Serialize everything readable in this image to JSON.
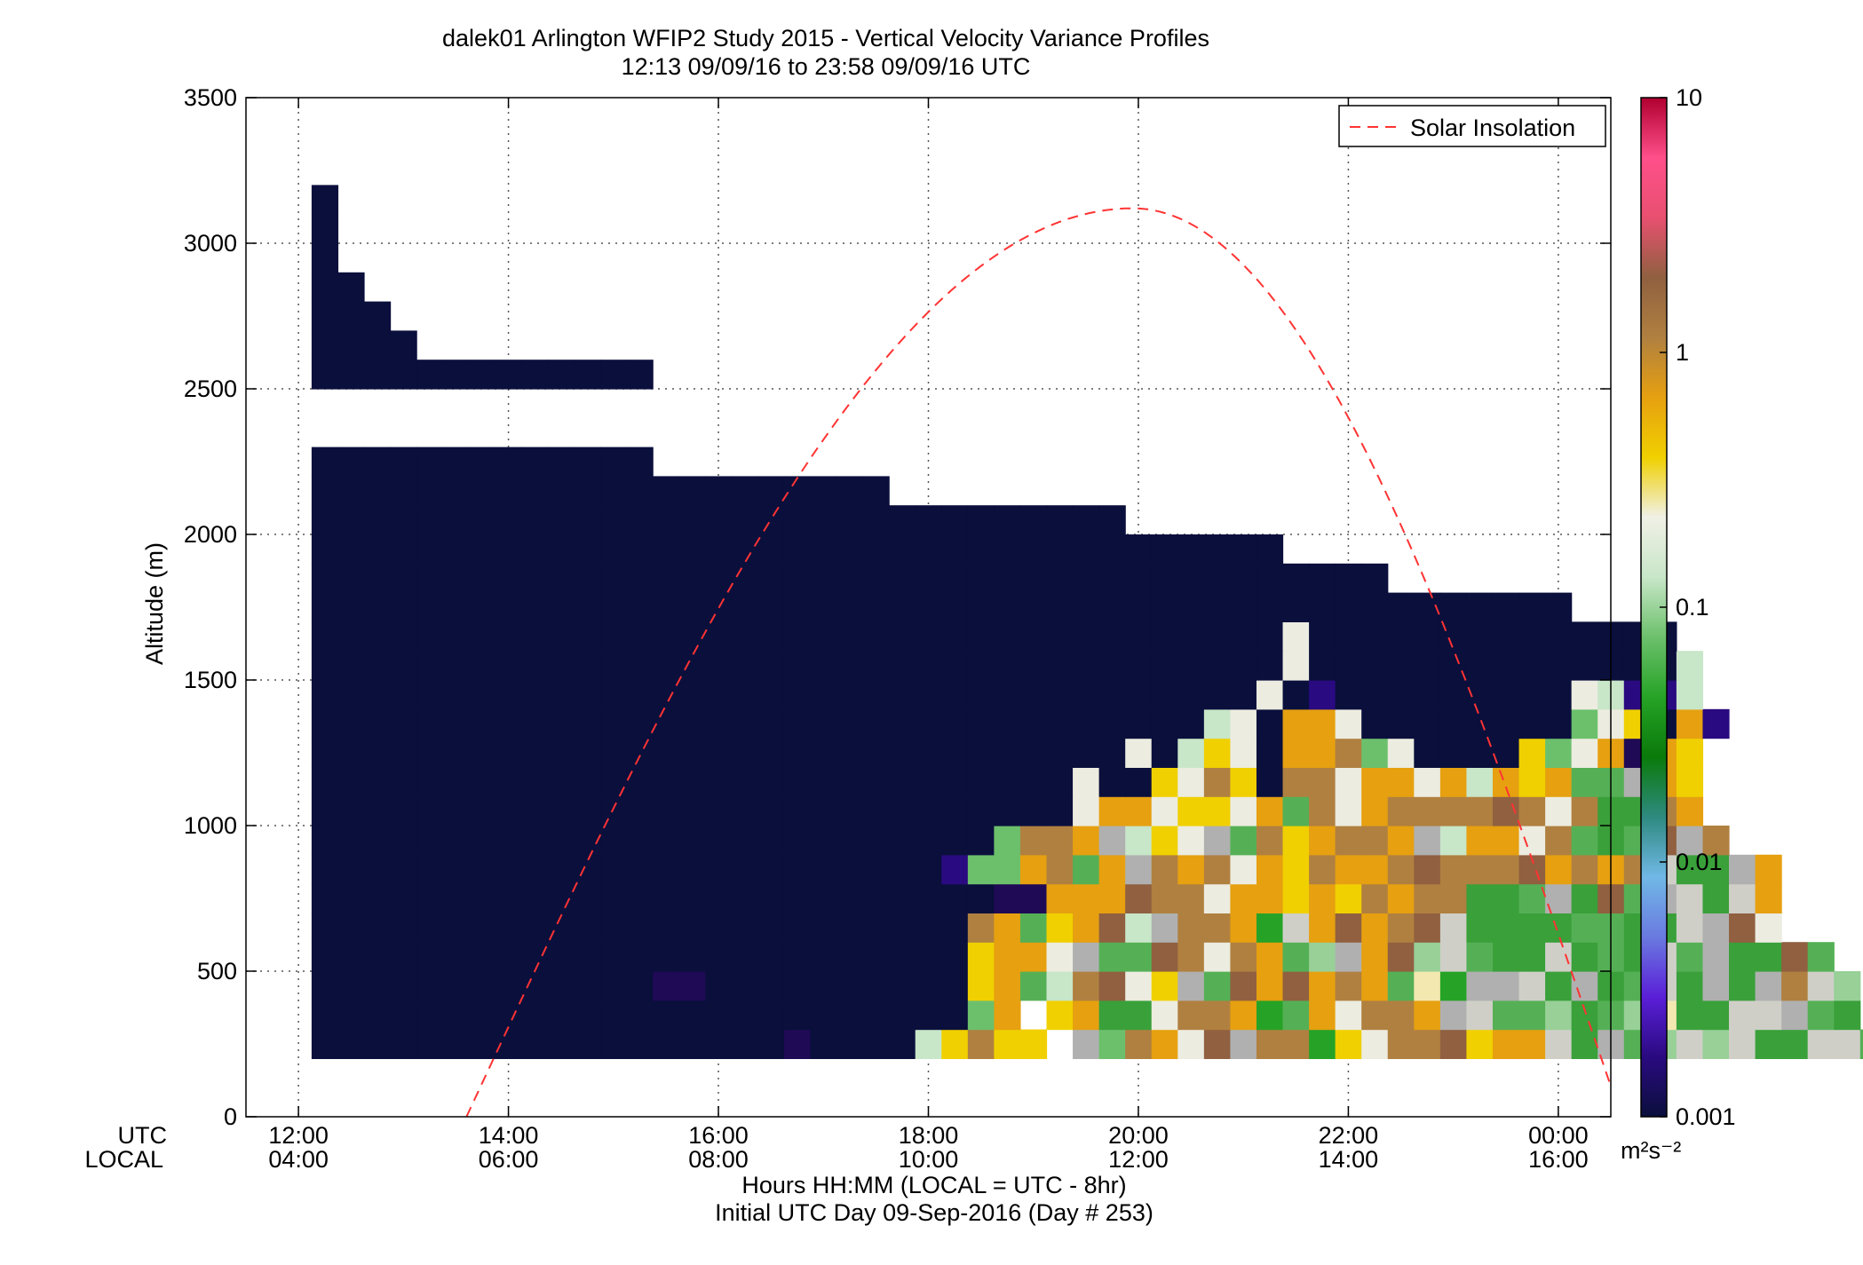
{
  "chart_data": {
    "type": "heatmap",
    "title": "dalek01 Arlington WFIP2 Study 2015 - Vertical Velocity Variance Profiles",
    "subtitle": "12:13 09/09/16 to 23:58 09/09/16  UTC",
    "ylabel": "Altitude (m)",
    "xlabel": "Hours HH:MM  (LOCAL = UTC - 8hr)",
    "xlabel2": "Initial UTC Day 09-Sep-2016 (Day # 253)",
    "row_label_utc": "UTC",
    "row_label_local": "LOCAL",
    "colorbar_unit": "m²s⁻²",
    "xlim": [
      11.5,
      24.5
    ],
    "ylim": [
      0,
      3500
    ],
    "grid": true,
    "legend_placement": "top-right",
    "legend": [
      {
        "name": "Solar Insolation",
        "style": "dashed",
        "color": "#ff3333"
      }
    ],
    "x_ticks": [
      {
        "value": 12,
        "utc": "12:00",
        "local": "04:00"
      },
      {
        "value": 14,
        "utc": "14:00",
        "local": "06:00"
      },
      {
        "value": 16,
        "utc": "16:00",
        "local": "08:00"
      },
      {
        "value": 18,
        "utc": "18:00",
        "local": "10:00"
      },
      {
        "value": 20,
        "utc": "20:00",
        "local": "12:00"
      },
      {
        "value": 22,
        "utc": "22:00",
        "local": "14:00"
      },
      {
        "value": 24,
        "utc": "00:00",
        "local": "16:00"
      }
    ],
    "y_ticks": [
      {
        "value": 0,
        "label": "0"
      },
      {
        "value": 500,
        "label": "500"
      },
      {
        "value": 1000,
        "label": "1000"
      },
      {
        "value": 1500,
        "label": "1500"
      },
      {
        "value": 2000,
        "label": "2000"
      },
      {
        "value": 2500,
        "label": "2500"
      },
      {
        "value": 3000,
        "label": "3000"
      },
      {
        "value": 3500,
        "label": "3500"
      }
    ],
    "colorbar_ticks": [
      {
        "value": 0.001,
        "label": "0.001"
      },
      {
        "value": 0.01,
        "label": "0.01"
      },
      {
        "value": 0.1,
        "label": "0.1"
      },
      {
        "value": 1,
        "label": "1"
      },
      {
        "value": 10,
        "label": "10"
      }
    ],
    "colorbar_range": [
      0.001,
      10
    ],
    "colormap": [
      "#0a0f3c",
      "#2a0a80",
      "#5a1fd8",
      "#6a7ae0",
      "#70b8e6",
      "#2e8a80",
      "#0a7a0a",
      "#26a326",
      "#6cc06c",
      "#c8e6c8",
      "#f0f0e6",
      "#f0d000",
      "#e6a010",
      "#b08040",
      "#906040",
      "#e85070",
      "#ff4f8a",
      "#b00030"
    ],
    "solar_insolation": {
      "x_start": 13.6,
      "x_peak": 19.95,
      "y_peak": 3120,
      "x_end": 24.6
    },
    "cell_width_hours": 0.25,
    "cell_height_m": 100,
    "x_start": 12.25,
    "y_start": 250,
    "row_labels": [
      250,
      350,
      450,
      550,
      650,
      750,
      850,
      950,
      1050,
      1150,
      1250,
      1350,
      1450,
      1550,
      1650,
      1750,
      1850,
      1950,
      2050,
      2150,
      2250,
      2550,
      2650,
      2750,
      2850,
      2950,
      3050,
      3150
    ],
    "rows": [
      "11111111111111111121111DFHFF0JCHGEIJHHBFEHHIFGGKLJMNKNKLLKKML",
      "1111111111111111111111111CG0FGLLEHHGBMGEHHGJKMMNLMNOLLKKJML",
      "1111111111111221111111111FGMDHIEFJMIGIGHGMOBJJKLJLMKLJLJHKN",
      "1111111111111111111111111FGGEJMMIHEHGMNJGINKMLLKLMLKMJLLIM",
      "1111111111111111111111111HGMFGIDJHHGBKGIGHIKLLLLMMLLKJIE",
      "1111111111111111111111111122GGGIHHEGGFGFHGHHLLMJLIMJKLKG",
      "1111111111111111111111113CCGHMGJHGHEGFHGGHIHHHIGHGHKLLJG",
      "11111111111111111111111111CHHGJDFEJMHFGHHGJDGGEHMLMIJH",
      "11111111111111111111111111111EGGEFFEGMHEGHHHHIHEHLLHG",
      "11111111111111111111111111111E11FEHF1HHEGGEGDGFGMMJGF",
      "1111111111111111111111111111111E1DFE1GGHCE1111FCEG2GF",
      "1111111111111111111111111111111111DE1GGE11111111CEF1G3",
      "111111111111111111111111111111111111E13111111111ED33D",
      "1111111111111111111111111111111111111E11111111111111D",
      "1111111111111111111111111111111111111E11111111111111",
      "111111111111111111111111111111111111111111111111",
      "11111111111111111111111111111111111111111",
      "1111111111111111111111111111111111111",
      "1111111111111111111111111111111",
      "1111111111111111111111",
      "1111111111111",
      "1111111111111",
      "1111",
      "111",
      "11",
      "1",
      "1",
      "1"
    ]
  }
}
